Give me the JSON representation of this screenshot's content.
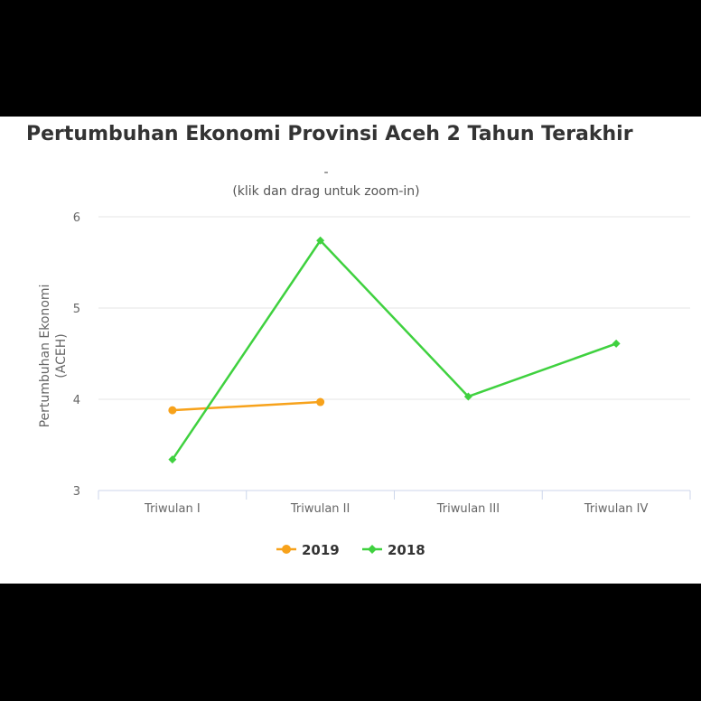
{
  "chart_data": {
    "type": "line",
    "title": "Pertumbuhan Ekonomi Provinsi Aceh 2 Tahun Terakhir",
    "subtitle_dash": "-",
    "zoom_hint": "(klik dan drag untuk zoom-in)",
    "ylabel_line1": "Pertumbuhan Ekonomi",
    "ylabel_line2": "(ACEH)",
    "xlabel": "",
    "categories": [
      "Triwulan I",
      "Triwulan II",
      "Triwulan III",
      "Triwulan IV"
    ],
    "ylim": [
      3,
      6
    ],
    "yticks": [
      "3",
      "4",
      "5",
      "6"
    ],
    "grid": true,
    "legend_position": "bottom-center",
    "series": [
      {
        "name": "2019",
        "color": "#f7a21b",
        "marker": "circle",
        "values": [
          3.88,
          3.97,
          null,
          null
        ]
      },
      {
        "name": "2018",
        "color": "#3fd13f",
        "marker": "diamond",
        "values": [
          3.34,
          5.74,
          4.03,
          4.61
        ]
      }
    ]
  }
}
